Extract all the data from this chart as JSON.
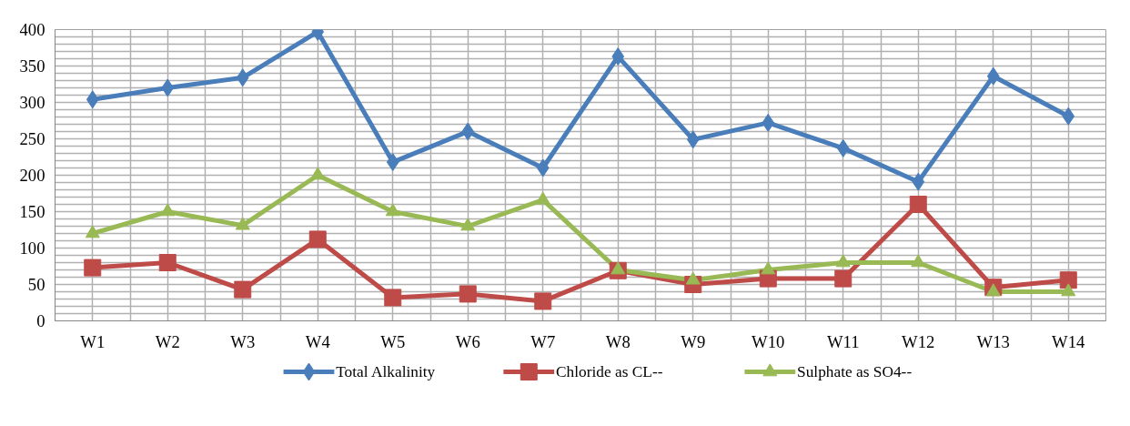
{
  "chart_data": {
    "type": "line",
    "categories": [
      "W1",
      "W2",
      "W3",
      "W4",
      "W5",
      "W6",
      "W7",
      "W8",
      "W9",
      "W10",
      "W11",
      "W12",
      "W13",
      "W14"
    ],
    "series": [
      {
        "name": "Total Alkalinity",
        "color": "#4a7ebb",
        "marker": "diamond",
        "values": [
          304,
          320,
          334,
          397,
          218,
          260,
          210,
          363,
          249,
          272,
          237,
          191,
          336,
          281
        ]
      },
      {
        "name": "Chloride as CL--",
        "color": "#be4b48",
        "marker": "square",
        "values": [
          73,
          80,
          43,
          112,
          32,
          37,
          27,
          69,
          50,
          58,
          58,
          160,
          46,
          56
        ]
      },
      {
        "name": "Sulphate as SO4--",
        "color": "#98b954",
        "marker": "triangle",
        "values": [
          120,
          150,
          131,
          200,
          150,
          130,
          166,
          70,
          56,
          70,
          80,
          80,
          40,
          40
        ]
      }
    ],
    "ylim": [
      0,
      400
    ],
    "yticks": [
      0,
      50,
      100,
      150,
      200,
      250,
      300,
      350,
      400
    ],
    "grid": true,
    "legend": "bottom",
    "line_style": "solid"
  }
}
